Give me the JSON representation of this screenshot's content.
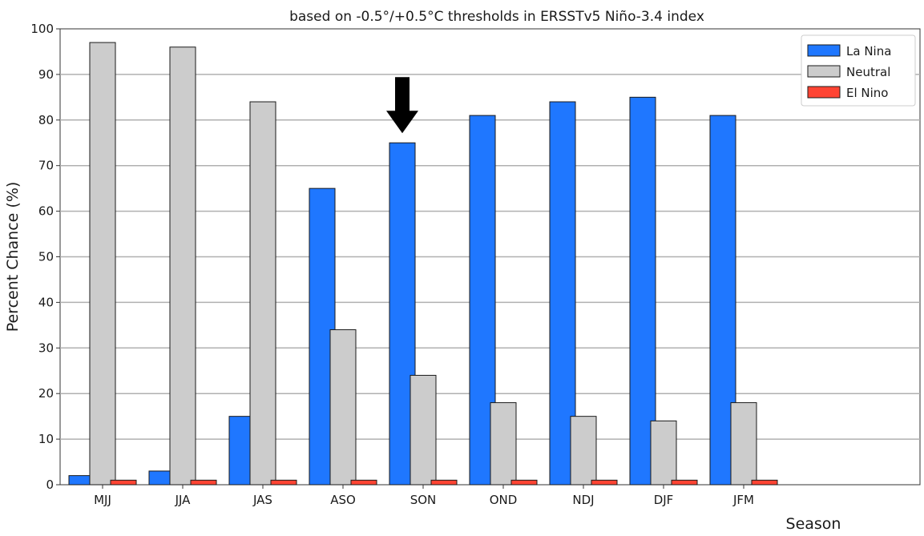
{
  "chart_data": {
    "type": "bar",
    "title": "based on -0.5°/+0.5°C thresholds in ERSSTv5 Niño-3.4 index",
    "xlabel": "Season",
    "ylabel": "Percent Chance (%)",
    "ylim": [
      0,
      100
    ],
    "yticks": [
      0,
      10,
      20,
      30,
      40,
      50,
      60,
      70,
      80,
      90,
      100
    ],
    "grid": true,
    "legend_position": "top-right",
    "categories": [
      "MJJ",
      "JJA",
      "JAS",
      "ASO",
      "SON",
      "OND",
      "NDJ",
      "DJF",
      "JFM"
    ],
    "series": [
      {
        "name": "La Nina",
        "color": "#1f77ff",
        "values": [
          2,
          3,
          15,
          65,
          75,
          81,
          84,
          85,
          81
        ]
      },
      {
        "name": "Neutral",
        "color": "#cccccc",
        "values": [
          97,
          96,
          84,
          34,
          24,
          18,
          15,
          14,
          18
        ]
      },
      {
        "name": "El Nino",
        "color": "#ff4433",
        "values": [
          1,
          1,
          1,
          1,
          1,
          1,
          1,
          1,
          1
        ]
      }
    ],
    "annotation": {
      "type": "arrow",
      "category": "SON",
      "color": "#000000"
    }
  }
}
